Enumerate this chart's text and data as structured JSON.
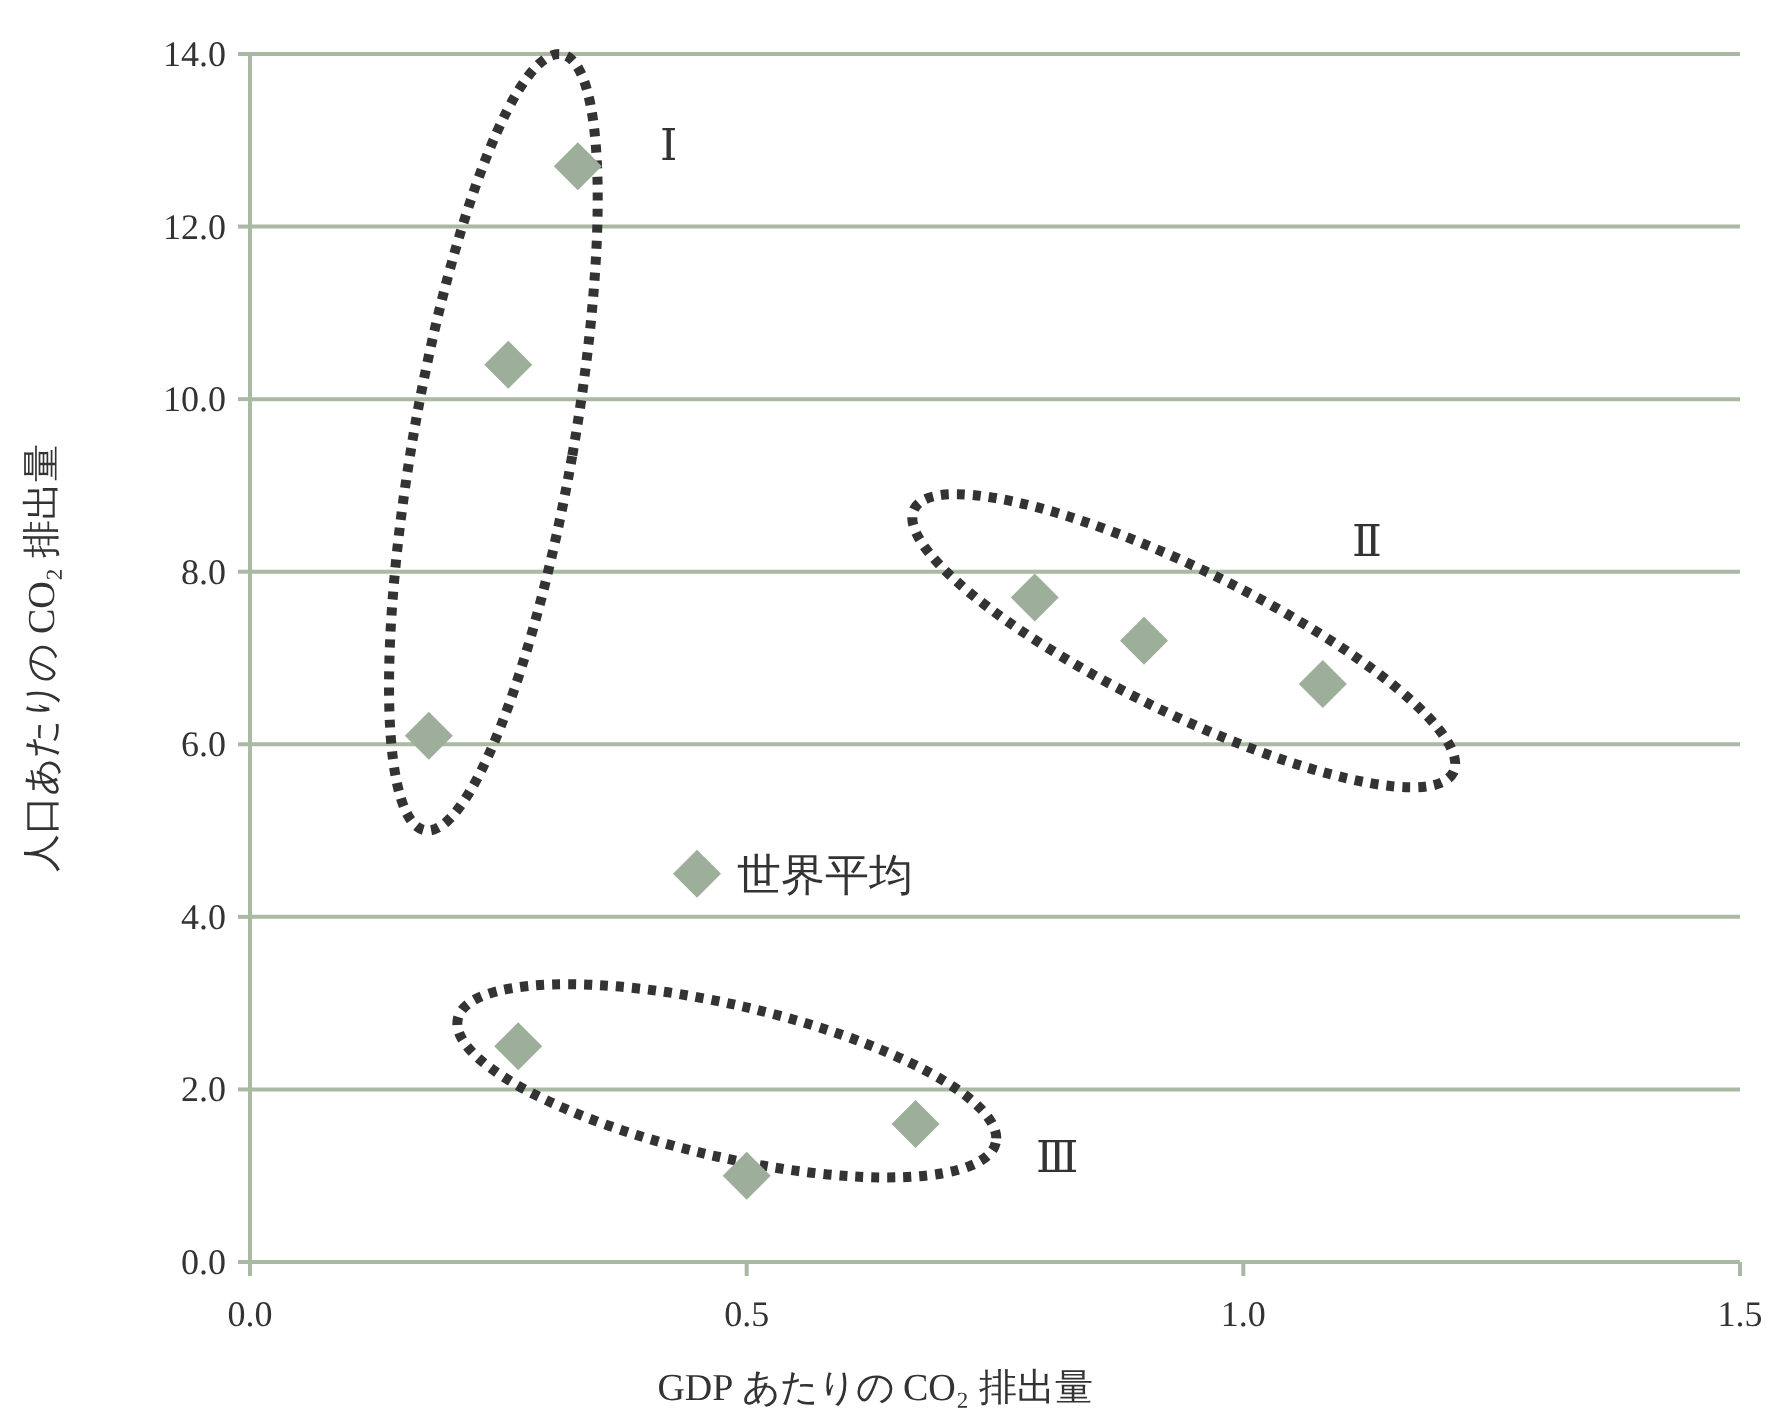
{
  "chart_data": {
    "type": "scatter",
    "xlabel": "GDP あたりの CO₂ 排出量",
    "ylabel": "人口あたりの CO₂ 排出量",
    "x": [
      0.33,
      0.26,
      0.18,
      0.45,
      0.27,
      0.5,
      0.67,
      0.79,
      0.9,
      1.08
    ],
    "values": [
      12.7,
      10.4,
      6.1,
      4.5,
      2.5,
      1.0,
      1.6,
      7.7,
      7.2,
      6.7
    ],
    "color": "#9dae9a",
    "marker": "diamond",
    "xlim": [
      0,
      1.5
    ],
    "xticks": [
      {
        "value": 0,
        "label": "0.0"
      },
      {
        "value": 0.5,
        "label": "0.5"
      },
      {
        "value": 1,
        "label": "1.0"
      },
      {
        "value": 1.5,
        "label": "1.5"
      }
    ],
    "ylim": [
      0,
      14
    ],
    "yticks": [
      {
        "value": 0,
        "label": "0.0"
      },
      {
        "value": 2,
        "label": "2.0"
      },
      {
        "value": 4,
        "label": "4.0"
      },
      {
        "value": 6,
        "label": "6.0"
      },
      {
        "value": 8,
        "label": "8.0"
      },
      {
        "value": 10,
        "label": "10.0"
      },
      {
        "value": 12,
        "label": "12.0"
      },
      {
        "value": 14,
        "label": "14.0"
      }
    ],
    "grid": "y",
    "annotations": [
      "Ⅰ",
      "Ⅱ",
      "Ⅲ",
      {
        "text": "世界平均",
        "x": 0.45,
        "y": 4.5
      }
    ]
  }
}
